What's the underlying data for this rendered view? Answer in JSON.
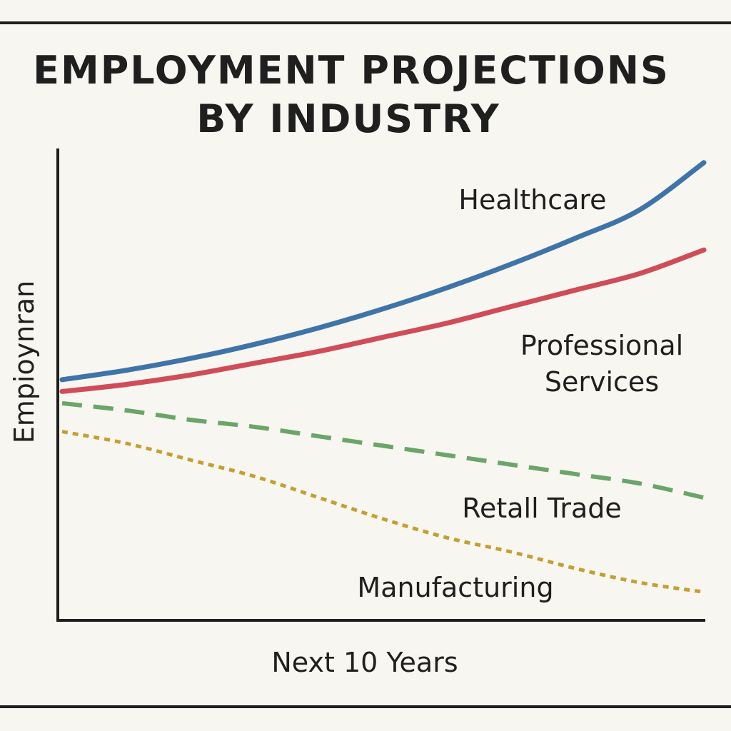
{
  "chart_data": {
    "type": "line",
    "title": "EMPLOYMENT PROJECTIONS BY INDUSTRY",
    "title_lines": [
      "EMPLOYMENT PROJECTIONS",
      "BY INDUSTRY"
    ],
    "xlabel": "Next 10 Years",
    "ylabel": "Empioynran",
    "x": [
      0,
      1,
      2,
      3,
      4,
      5,
      6,
      7,
      8,
      9,
      10
    ],
    "xlim": [
      0,
      10
    ],
    "ylim": [
      0,
      100
    ],
    "grid": false,
    "legend": "inline labels",
    "series": [
      {
        "name": "Healthcare",
        "color": "#3f74a8",
        "style": "solid",
        "values": [
          51,
          53,
          55.5,
          58.5,
          62,
          66,
          70.5,
          75.5,
          81,
          87,
          97
        ]
      },
      {
        "name": "Professional Services",
        "label_lines": [
          "Professional",
          "Services"
        ],
        "color": "#cf4c58",
        "style": "solid",
        "values": [
          48.5,
          50,
          52,
          54.5,
          57,
          60,
          63,
          66.5,
          70,
          73.5,
          78.5
        ]
      },
      {
        "name": "Retall Trade",
        "color": "#6aa56a",
        "style": "dashed",
        "values": [
          46,
          44.5,
          42.5,
          41,
          39,
          37,
          35,
          33,
          31,
          29,
          26
        ]
      },
      {
        "name": "Manufacturing",
        "color": "#c3a034",
        "style": "dotted",
        "values": [
          40,
          37.5,
          34,
          30.5,
          26,
          21.5,
          17.5,
          14.5,
          11,
          8,
          6
        ]
      }
    ]
  }
}
